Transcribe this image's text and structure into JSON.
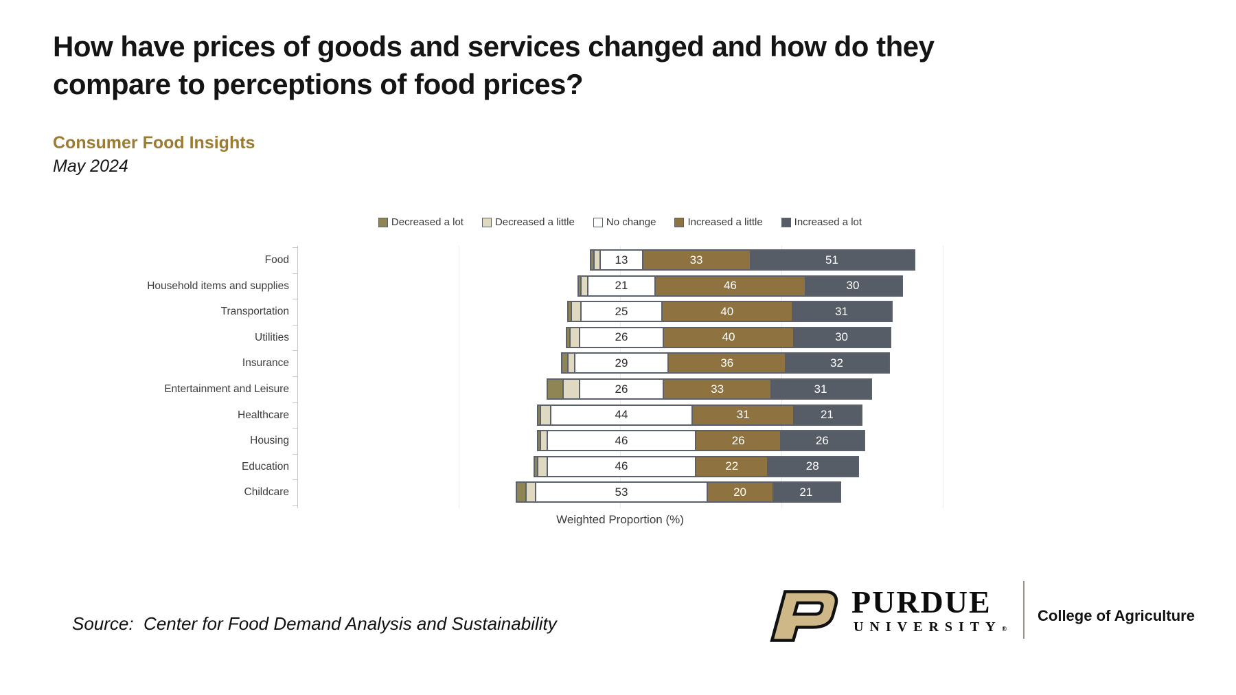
{
  "header": {
    "title_line1": "How have prices of goods and services changed and how do they",
    "title_line2": "compare to perceptions of food prices?",
    "report": "Consumer Food Insights",
    "date": "May 2024"
  },
  "chart_data": {
    "type": "bar",
    "subtype": "horizontal-diverging-stacked",
    "title": "",
    "xlabel": "Weighted Proportion (%)",
    "ylabel": "",
    "legend_position": "top-center",
    "grid": "faint vertical gridlines every 50 percentage points",
    "alignment": "bars aligned on the center of the 'No change' segment; small 'Decreased' segments are unlabeled in the figure and estimated from pixel widths",
    "categories": [
      "Food",
      "Household items and supplies",
      "Transportation",
      "Utilities",
      "Insurance",
      "Entertainment and Leisure",
      "Healthcare",
      "Housing",
      "Education",
      "Childcare"
    ],
    "series": [
      {
        "name": "Decreased a lot",
        "color": "#8F8454",
        "show_labels": false,
        "values": [
          1,
          1,
          1,
          1,
          2,
          5,
          1,
          1,
          1,
          3
        ]
      },
      {
        "name": "Decreased a little",
        "color": "#DFD9C1",
        "show_labels": false,
        "values": [
          2,
          2,
          3,
          3,
          2,
          5,
          3,
          2,
          3,
          3
        ]
      },
      {
        "name": "No change",
        "color": "#FFFFFF",
        "show_labels": true,
        "values": [
          13,
          21,
          25,
          26,
          29,
          26,
          44,
          46,
          46,
          53
        ]
      },
      {
        "name": "Increased a little",
        "color": "#8E7340",
        "show_labels": true,
        "values": [
          33,
          46,
          40,
          40,
          36,
          33,
          31,
          26,
          22,
          20
        ]
      },
      {
        "name": "Increased a lot",
        "color": "#575D66",
        "show_labels": true,
        "values": [
          51,
          30,
          31,
          30,
          32,
          31,
          21,
          26,
          28,
          21
        ]
      }
    ],
    "accent_colors": {
      "border": "#5A616B",
      "gold_heading": "#9B7C31"
    }
  },
  "footer": {
    "source": "Source:  Center for Food Demand Analysis and Sustainability",
    "logo": {
      "name": "PURDUE",
      "sub": "UNIVERSITY",
      "reg": "®",
      "college": "College of Agriculture",
      "p_color": "#CEB888"
    }
  }
}
